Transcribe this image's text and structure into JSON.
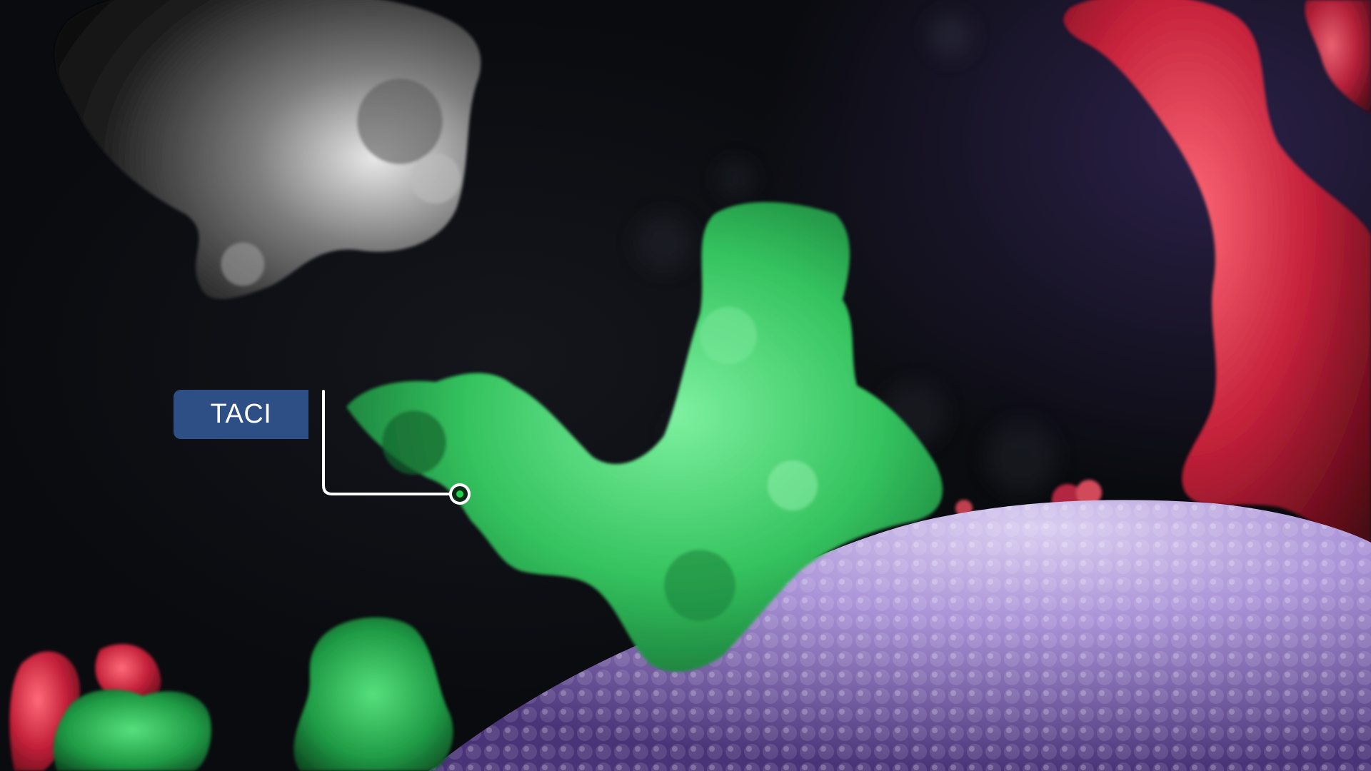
{
  "labels": {
    "taci": "TACI"
  },
  "colors": {
    "background": "#07080c",
    "label_bg": "#2d4f86",
    "label_text": "#ffffff",
    "leader_line": "#ffffff",
    "leader_dot": "#1fd34a",
    "receptor_green": "#3fcf6a",
    "ligand_red": "#c4213a",
    "membrane_purple": "#9a82c8",
    "antibody_gray": "#8a8a8a"
  }
}
